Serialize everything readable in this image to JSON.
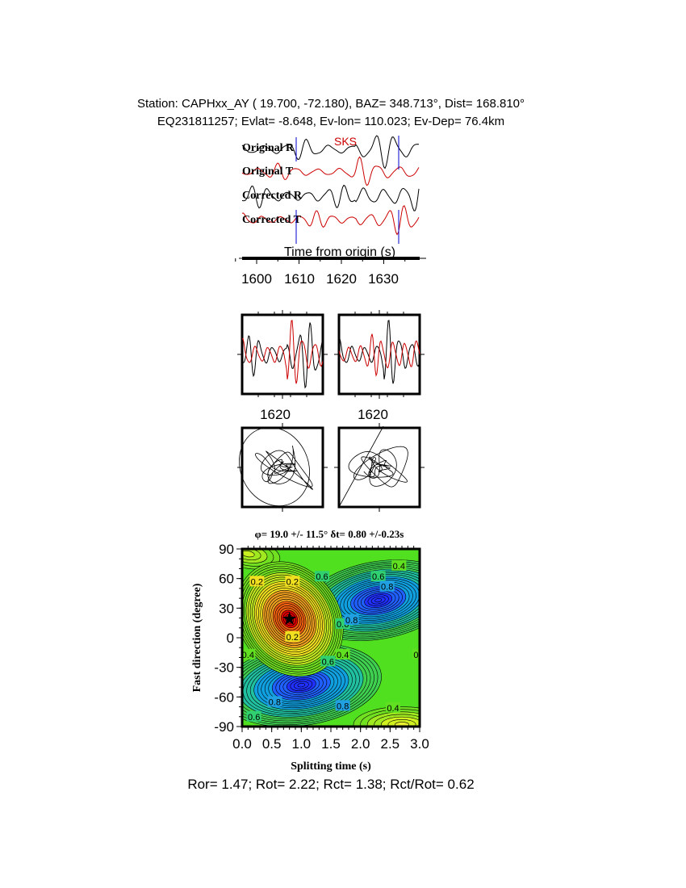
{
  "header": {
    "line1": "Station: CAPHxx_AY (  19.700,  -72.180), BAZ=  348.713°, Dist=  168.810°",
    "line2": "EQ231811257; Evlat=  -8.648, Ev-lon= 110.023; Ev-Dep= 76.4km"
  },
  "traces": {
    "labels": [
      "Original R",
      "Original T",
      "Corrected R",
      "Corrected T"
    ],
    "colors": [
      "#000000",
      "#cc0000",
      "#000000",
      "#cc0000"
    ],
    "phase": "SKS",
    "phase_color": "#cc0000",
    "window_color": "#0000cc",
    "xlabel": "Time from origin (s)",
    "xticks": [
      "1600",
      "1610",
      "1620",
      "1630"
    ]
  },
  "particle_panels": {
    "tick_labels": [
      "1620",
      "1620"
    ]
  },
  "chart_data": {
    "type": "heatmap",
    "title": "φ= 19.0 +/- 11.5° δt= 0.80 +/-0.23s",
    "xlabel": "Splitting time (s)",
    "ylabel": "Fast direction (degree)",
    "xlim": [
      0.0,
      3.0
    ],
    "ylim": [
      -90,
      90
    ],
    "xticks": [
      "0.0",
      "0.5",
      "1.0",
      "1.5",
      "2.0",
      "2.5",
      "3.0"
    ],
    "yticks": [
      "90",
      "60",
      "30",
      "0",
      "-30",
      "-60",
      "-90"
    ],
    "best_fit": {
      "dt": 0.8,
      "phi": 19.0
    },
    "minimum": {
      "dt": 0.8,
      "phi": 19,
      "color": "#e00000"
    },
    "maxima": [
      {
        "dt": 2.3,
        "phi": 38,
        "color": "#2020ff"
      },
      {
        "dt": 1.0,
        "phi": -48,
        "color": "#2020ff"
      }
    ],
    "contour_labels": [
      "0.2",
      "0.2",
      "0.2",
      "0.4",
      "0.4",
      "0.4",
      "0.4",
      "0.4",
      "0.6",
      "0.6",
      "0.6",
      "0.6",
      "0.6",
      "0.8",
      "0.8",
      "0.8",
      "0.8"
    ],
    "background_color": "#50e020"
  },
  "footer": "Ror= 1.47; Rot= 2.22; Rct= 1.38; Rct/Rot= 0.62"
}
